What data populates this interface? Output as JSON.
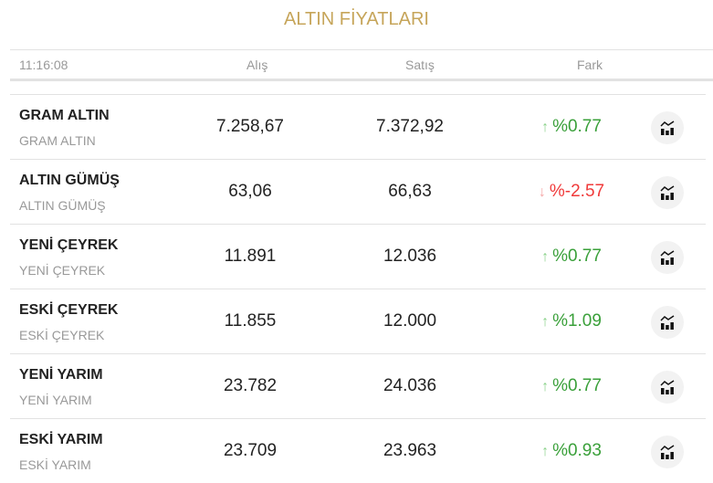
{
  "title": "ALTIN FİYATLARI",
  "header": {
    "time": "11:16:08",
    "buy": "Alış",
    "sell": "Satış",
    "diff": "Fark"
  },
  "colors": {
    "title": "#c6a55a",
    "up": "#3aa03a",
    "down": "#f03a3a"
  },
  "rows": [
    {
      "name": "GRAM ALTIN",
      "sub": "GRAM ALTIN",
      "buy": "7.258,67",
      "sell": "7.372,92",
      "diff": "%0.77",
      "dir": "up",
      "arrow": "↑"
    },
    {
      "name": "ALTIN GÜMÜŞ",
      "sub": "ALTIN GÜMÜŞ",
      "buy": "63,06",
      "sell": "66,63",
      "diff": "%-2.57",
      "dir": "down",
      "arrow": "↓"
    },
    {
      "name": "YENİ ÇEYREK",
      "sub": "YENİ ÇEYREK",
      "buy": "11.891",
      "sell": "12.036",
      "diff": "%0.77",
      "dir": "up",
      "arrow": "↑"
    },
    {
      "name": "ESKİ ÇEYREK",
      "sub": "ESKİ ÇEYREK",
      "buy": "11.855",
      "sell": "12.000",
      "diff": "%1.09",
      "dir": "up",
      "arrow": "↑"
    },
    {
      "name": "YENİ YARIM",
      "sub": "YENİ YARIM",
      "buy": "23.782",
      "sell": "24.036",
      "diff": "%0.77",
      "dir": "up",
      "arrow": "↑"
    },
    {
      "name": "ESKİ YARIM",
      "sub": "ESKİ YARIM",
      "buy": "23.709",
      "sell": "23.963",
      "diff": "%0.93",
      "dir": "up",
      "arrow": "↑"
    }
  ]
}
